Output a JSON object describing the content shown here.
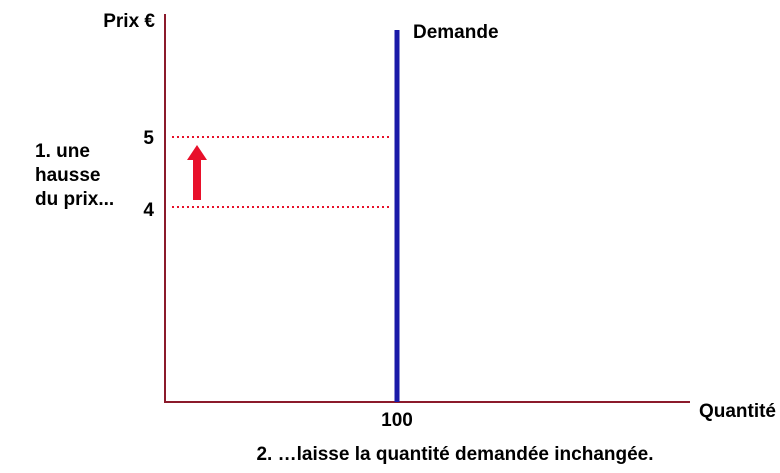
{
  "y_axis_label": "Prix €",
  "x_axis_label": "Quantité",
  "curve_label": "Demande",
  "price_levels": [
    5,
    4
  ],
  "quantity": 100,
  "left_annotation": [
    "1. une",
    "hausse",
    "du prix..."
  ],
  "bottom_annotation": "2. …laisse la quantité demandée inchangée."
}
